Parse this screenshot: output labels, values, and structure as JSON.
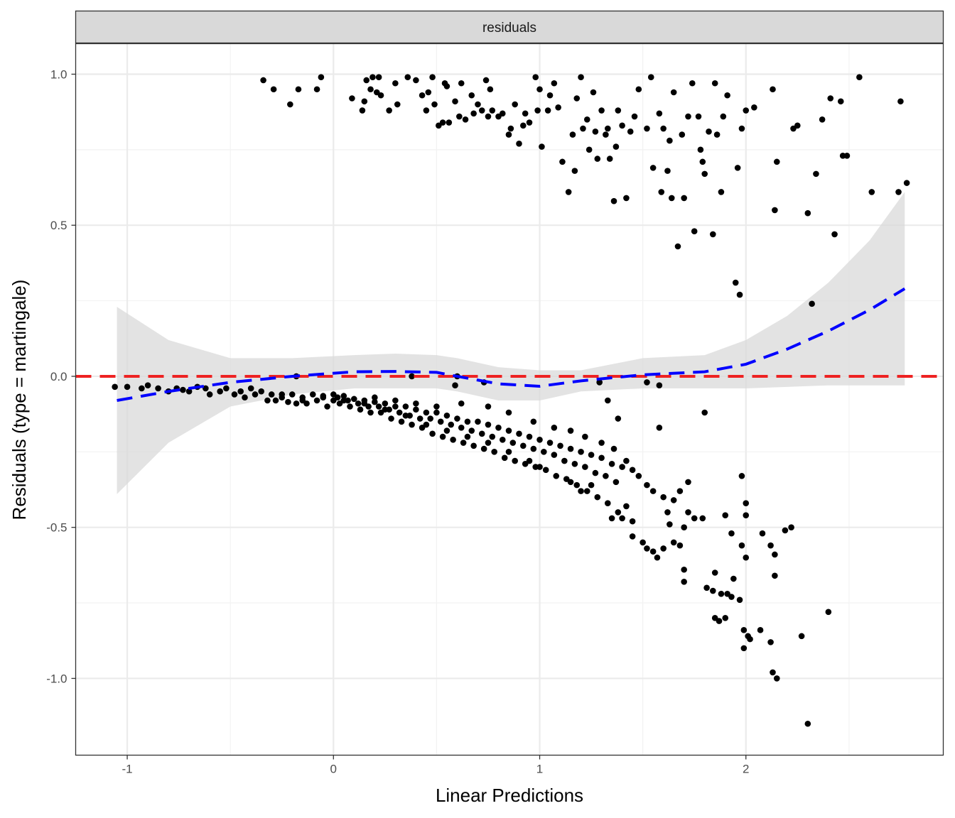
{
  "chart_data": {
    "type": "scatter",
    "facet_label": "residuals",
    "xlabel": "Linear Predictions",
    "ylabel": "Residuals (type = martingale)",
    "xlim": [
      -1.25,
      2.957
    ],
    "ylim": [
      -1.254,
      1.101
    ],
    "x_ticks": [
      {
        "value": -1,
        "label": "-1"
      },
      {
        "value": 0,
        "label": "0"
      },
      {
        "value": 1,
        "label": "1"
      },
      {
        "value": 2,
        "label": "2"
      }
    ],
    "y_ticks": [
      {
        "value": 1.0,
        "label": "1.0"
      },
      {
        "value": 0.5,
        "label": "0.5"
      },
      {
        "value": 0.0,
        "label": "0.0"
      },
      {
        "value": -0.5,
        "label": "-0.5"
      },
      {
        "value": -1.0,
        "label": "-1.0"
      }
    ],
    "x_minor": [
      -0.5,
      0.5,
      1.5,
      2.5
    ],
    "y_minor": [
      0.75,
      0.25,
      -0.25,
      -0.75
    ],
    "grid": true,
    "reference_line": {
      "y": 0,
      "color": "#ee2222",
      "style": "dashed"
    },
    "smooth": {
      "color": "#0000ff",
      "style": "dashed",
      "x": [
        -1.05,
        -0.8,
        -0.5,
        -0.2,
        0.1,
        0.3,
        0.5,
        0.6,
        0.8,
        1.0,
        1.2,
        1.5,
        1.8,
        2.0,
        2.2,
        2.4,
        2.6,
        2.77
      ],
      "y": [
        -0.08,
        -0.05,
        -0.02,
        0.0,
        0.015,
        0.016,
        0.013,
        0.0,
        -0.025,
        -0.033,
        -0.015,
        0.005,
        0.015,
        0.04,
        0.09,
        0.15,
        0.22,
        0.29
      ],
      "ci_upper": [
        0.23,
        0.12,
        0.06,
        0.06,
        0.07,
        0.075,
        0.07,
        0.06,
        0.03,
        0.02,
        0.02,
        0.06,
        0.07,
        0.12,
        0.2,
        0.31,
        0.45,
        0.61
      ],
      "ci_lower": [
        -0.39,
        -0.22,
        -0.1,
        -0.06,
        -0.04,
        -0.04,
        -0.04,
        -0.05,
        -0.08,
        -0.08,
        -0.05,
        -0.04,
        -0.04,
        -0.04,
        -0.035,
        -0.03,
        -0.03,
        -0.03
      ],
      "ci_color": "#d9d9d9"
    },
    "points": [
      [
        -0.34,
        0.98
      ],
      [
        -0.29,
        0.95
      ],
      [
        -0.21,
        0.9
      ],
      [
        -0.17,
        0.95
      ],
      [
        -0.08,
        0.95
      ],
      [
        -0.06,
        0.99
      ],
      [
        0.09,
        0.92
      ],
      [
        0.14,
        0.88
      ],
      [
        0.15,
        0.91
      ],
      [
        0.16,
        0.98
      ],
      [
        0.18,
        0.95
      ],
      [
        0.19,
        0.99
      ],
      [
        0.21,
        0.94
      ],
      [
        0.22,
        0.99
      ],
      [
        0.23,
        0.93
      ],
      [
        0.27,
        0.88
      ],
      [
        0.3,
        0.97
      ],
      [
        0.31,
        0.9
      ],
      [
        0.36,
        0.99
      ],
      [
        0.4,
        0.98
      ],
      [
        0.43,
        0.93
      ],
      [
        0.45,
        0.88
      ],
      [
        0.46,
        0.94
      ],
      [
        0.48,
        0.99
      ],
      [
        0.49,
        0.9
      ],
      [
        0.51,
        0.83
      ],
      [
        0.53,
        0.84
      ],
      [
        0.54,
        0.97
      ],
      [
        0.55,
        0.96
      ],
      [
        0.56,
        0.84
      ],
      [
        0.59,
        0.91
      ],
      [
        0.61,
        0.86
      ],
      [
        0.62,
        0.97
      ],
      [
        0.64,
        0.85
      ],
      [
        0.67,
        0.93
      ],
      [
        0.68,
        0.87
      ],
      [
        0.7,
        0.9
      ],
      [
        0.72,
        0.88
      ],
      [
        0.74,
        0.98
      ],
      [
        0.75,
        0.86
      ],
      [
        0.76,
        0.95
      ],
      [
        0.77,
        0.88
      ],
      [
        0.8,
        0.86
      ],
      [
        0.82,
        0.87
      ],
      [
        0.85,
        0.8
      ],
      [
        0.86,
        0.82
      ],
      [
        0.88,
        0.9
      ],
      [
        0.9,
        0.77
      ],
      [
        0.92,
        0.83
      ],
      [
        0.93,
        0.87
      ],
      [
        0.95,
        0.84
      ],
      [
        0.98,
        0.99
      ],
      [
        0.99,
        0.88
      ],
      [
        1.0,
        0.95
      ],
      [
        1.01,
        0.76
      ],
      [
        1.04,
        0.88
      ],
      [
        1.05,
        0.93
      ],
      [
        1.07,
        0.97
      ],
      [
        1.09,
        0.89
      ],
      [
        1.11,
        0.71
      ],
      [
        1.14,
        0.61
      ],
      [
        1.16,
        0.8
      ],
      [
        1.17,
        0.68
      ],
      [
        1.18,
        0.92
      ],
      [
        1.2,
        0.99
      ],
      [
        1.21,
        0.82
      ],
      [
        1.23,
        0.85
      ],
      [
        1.24,
        0.75
      ],
      [
        1.26,
        0.94
      ],
      [
        1.27,
        0.81
      ],
      [
        1.28,
        0.72
      ],
      [
        1.3,
        0.88
      ],
      [
        1.32,
        0.8
      ],
      [
        1.33,
        0.82
      ],
      [
        1.34,
        0.72
      ],
      [
        1.36,
        0.58
      ],
      [
        1.37,
        0.76
      ],
      [
        1.38,
        0.88
      ],
      [
        1.4,
        0.83
      ],
      [
        1.42,
        0.59
      ],
      [
        1.44,
        0.81
      ],
      [
        1.46,
        0.86
      ],
      [
        1.48,
        0.95
      ],
      [
        1.52,
        0.82
      ],
      [
        1.54,
        0.99
      ],
      [
        1.55,
        0.69
      ],
      [
        1.58,
        0.87
      ],
      [
        1.59,
        0.61
      ],
      [
        1.6,
        0.82
      ],
      [
        1.62,
        0.68
      ],
      [
        1.63,
        0.78
      ],
      [
        1.64,
        0.59
      ],
      [
        1.65,
        0.94
      ],
      [
        1.67,
        0.43
      ],
      [
        1.69,
        0.8
      ],
      [
        1.7,
        0.59
      ],
      [
        1.72,
        0.86
      ],
      [
        1.74,
        0.97
      ],
      [
        1.75,
        0.48
      ],
      [
        1.77,
        0.86
      ],
      [
        1.78,
        0.75
      ],
      [
        1.79,
        0.71
      ],
      [
        1.8,
        0.67
      ],
      [
        1.82,
        0.81
      ],
      [
        1.84,
        0.47
      ],
      [
        1.85,
        0.97
      ],
      [
        1.86,
        0.8
      ],
      [
        1.88,
        0.61
      ],
      [
        1.89,
        0.86
      ],
      [
        1.91,
        0.93
      ],
      [
        1.95,
        0.31
      ],
      [
        1.96,
        0.69
      ],
      [
        1.97,
        0.27
      ],
      [
        1.98,
        0.82
      ],
      [
        2.0,
        0.88
      ],
      [
        2.04,
        0.89
      ],
      [
        2.13,
        0.95
      ],
      [
        2.14,
        0.55
      ],
      [
        2.15,
        0.71
      ],
      [
        2.23,
        0.82
      ],
      [
        2.25,
        0.83
      ],
      [
        2.3,
        0.54
      ],
      [
        2.32,
        0.24
      ],
      [
        2.34,
        0.67
      ],
      [
        2.37,
        0.85
      ],
      [
        2.41,
        0.92
      ],
      [
        2.43,
        0.47
      ],
      [
        2.46,
        0.91
      ],
      [
        2.47,
        0.73
      ],
      [
        2.49,
        0.73
      ],
      [
        2.55,
        0.99
      ],
      [
        2.61,
        0.61
      ],
      [
        2.74,
        0.61
      ],
      [
        2.75,
        0.91
      ],
      [
        2.78,
        0.64
      ],
      [
        0.38,
        0.0
      ],
      [
        0.6,
        0.0
      ],
      [
        0.59,
        -0.03
      ],
      [
        0.73,
        -0.02
      ],
      [
        1.29,
        -0.02
      ],
      [
        1.52,
        -0.02
      ],
      [
        1.58,
        -0.03
      ],
      [
        -0.18,
        0.0
      ],
      [
        1.33,
        -0.08
      ],
      [
        1.38,
        -0.14
      ],
      [
        1.58,
        -0.17
      ],
      [
        1.8,
        -0.12
      ],
      [
        1.72,
        -0.35
      ],
      [
        1.98,
        -0.33
      ],
      [
        2.0,
        -0.42
      ],
      [
        2.0,
        -0.46
      ],
      [
        1.9,
        -0.46
      ],
      [
        1.75,
        -0.47
      ],
      [
        1.79,
        -0.47
      ],
      [
        1.93,
        -0.52
      ],
      [
        1.98,
        -0.56
      ],
      [
        2.0,
        -0.6
      ],
      [
        2.08,
        -0.52
      ],
      [
        2.12,
        -0.56
      ],
      [
        2.14,
        -0.59
      ],
      [
        2.19,
        -0.51
      ],
      [
        2.22,
        -0.5
      ],
      [
        2.14,
        -0.66
      ],
      [
        1.94,
        -0.67
      ],
      [
        1.85,
        -0.65
      ],
      [
        1.81,
        -0.7
      ],
      [
        1.84,
        -0.71
      ],
      [
        1.88,
        -0.72
      ],
      [
        1.91,
        -0.72
      ],
      [
        1.93,
        -0.73
      ],
      [
        1.97,
        -0.74
      ],
      [
        1.85,
        -0.8
      ],
      [
        1.9,
        -0.8
      ],
      [
        1.87,
        -0.81
      ],
      [
        1.99,
        -0.84
      ],
      [
        2.01,
        -0.86
      ],
      [
        2.02,
        -0.87
      ],
      [
        2.07,
        -0.84
      ],
      [
        2.12,
        -0.88
      ],
      [
        1.99,
        -0.9
      ],
      [
        2.13,
        -0.98
      ],
      [
        2.15,
        -1.0
      ],
      [
        2.27,
        -0.86
      ],
      [
        2.3,
        -1.15
      ],
      [
        2.4,
        -0.78
      ],
      [
        1.7,
        -0.64
      ],
      [
        1.7,
        -0.68
      ],
      [
        1.65,
        -0.55
      ],
      [
        1.68,
        -0.56
      ],
      [
        1.6,
        -0.57
      ],
      [
        1.55,
        -0.58
      ],
      [
        1.57,
        -0.6
      ],
      [
        1.52,
        -0.57
      ],
      [
        1.45,
        -0.53
      ],
      [
        1.5,
        -0.55
      ],
      [
        1.62,
        -0.45
      ],
      [
        1.63,
        -0.49
      ],
      [
        1.7,
        -0.5
      ],
      [
        1.72,
        -0.45
      ],
      [
        1.6,
        -0.4
      ],
      [
        1.65,
        -0.41
      ],
      [
        1.68,
        -0.38
      ],
      [
        1.55,
        -0.38
      ],
      [
        1.52,
        -0.36
      ],
      [
        1.48,
        -0.33
      ],
      [
        1.45,
        -0.31
      ],
      [
        1.42,
        -0.28
      ],
      [
        1.4,
        -0.3
      ],
      [
        -1.06,
        -0.035
      ],
      [
        -1.0,
        -0.035
      ],
      [
        -0.93,
        -0.04
      ],
      [
        -0.9,
        -0.03
      ],
      [
        -0.85,
        -0.04
      ],
      [
        -0.8,
        -0.05
      ],
      [
        -0.76,
        -0.04
      ],
      [
        -0.73,
        -0.045
      ],
      [
        -0.7,
        -0.05
      ],
      [
        -0.66,
        -0.035
      ],
      [
        -0.62,
        -0.04
      ],
      [
        -0.6,
        -0.06
      ],
      [
        -0.55,
        -0.05
      ],
      [
        -0.52,
        -0.04
      ],
      [
        -0.48,
        -0.06
      ],
      [
        -0.45,
        -0.05
      ],
      [
        -0.43,
        -0.07
      ],
      [
        -0.4,
        -0.04
      ],
      [
        -0.38,
        -0.06
      ],
      [
        -0.35,
        -0.05
      ],
      [
        -0.32,
        -0.08
      ],
      [
        -0.3,
        -0.06
      ],
      [
        -0.28,
        -0.08
      ],
      [
        -0.25,
        -0.07
      ],
      [
        -0.22,
        -0.085
      ],
      [
        -0.2,
        -0.06
      ],
      [
        -0.18,
        -0.09
      ],
      [
        -0.15,
        -0.07
      ],
      [
        -0.13,
        -0.09
      ],
      [
        -0.1,
        -0.06
      ],
      [
        -0.08,
        -0.08
      ],
      [
        -0.05,
        -0.07
      ],
      [
        -0.03,
        -0.1
      ],
      [
        0.0,
        -0.06
      ],
      [
        0.0,
        -0.08
      ],
      [
        0.02,
        -0.07
      ],
      [
        0.03,
        -0.09
      ],
      [
        0.05,
        -0.065
      ],
      [
        0.07,
        -0.08
      ],
      [
        0.08,
        -0.1
      ],
      [
        0.1,
        -0.075
      ],
      [
        0.12,
        -0.09
      ],
      [
        0.13,
        -0.11
      ],
      [
        0.15,
        -0.08
      ],
      [
        0.17,
        -0.1
      ],
      [
        0.18,
        -0.12
      ],
      [
        0.2,
        -0.085
      ],
      [
        0.22,
        -0.1
      ],
      [
        0.23,
        -0.12
      ],
      [
        0.25,
        -0.09
      ],
      [
        0.27,
        -0.11
      ],
      [
        0.28,
        -0.14
      ],
      [
        0.3,
        -0.1
      ],
      [
        0.32,
        -0.12
      ],
      [
        0.33,
        -0.15
      ],
      [
        0.35,
        -0.1
      ],
      [
        0.37,
        -0.13
      ],
      [
        0.38,
        -0.16
      ],
      [
        0.4,
        -0.11
      ],
      [
        0.42,
        -0.14
      ],
      [
        0.43,
        -0.17
      ],
      [
        0.45,
        -0.12
      ],
      [
        0.47,
        -0.14
      ],
      [
        0.48,
        -0.19
      ],
      [
        0.5,
        -0.12
      ],
      [
        0.52,
        -0.15
      ],
      [
        0.53,
        -0.2
      ],
      [
        0.55,
        -0.13
      ],
      [
        0.57,
        -0.16
      ],
      [
        0.58,
        -0.21
      ],
      [
        0.6,
        -0.14
      ],
      [
        0.62,
        -0.17
      ],
      [
        0.63,
        -0.22
      ],
      [
        0.65,
        -0.15
      ],
      [
        0.67,
        -0.18
      ],
      [
        0.68,
        -0.23
      ],
      [
        0.7,
        -0.15
      ],
      [
        0.72,
        -0.19
      ],
      [
        0.73,
        -0.24
      ],
      [
        0.75,
        -0.16
      ],
      [
        0.77,
        -0.2
      ],
      [
        0.78,
        -0.25
      ],
      [
        0.8,
        -0.17
      ],
      [
        0.82,
        -0.21
      ],
      [
        0.83,
        -0.27
      ],
      [
        0.85,
        -0.18
      ],
      [
        0.87,
        -0.22
      ],
      [
        0.88,
        -0.28
      ],
      [
        0.9,
        -0.19
      ],
      [
        0.92,
        -0.23
      ],
      [
        0.93,
        -0.29
      ],
      [
        0.95,
        -0.2
      ],
      [
        0.97,
        -0.24
      ],
      [
        0.98,
        -0.3
      ],
      [
        1.0,
        -0.21
      ],
      [
        1.02,
        -0.25
      ],
      [
        1.03,
        -0.31
      ],
      [
        1.05,
        -0.22
      ],
      [
        1.07,
        -0.26
      ],
      [
        1.08,
        -0.33
      ],
      [
        1.1,
        -0.23
      ],
      [
        1.12,
        -0.28
      ],
      [
        1.13,
        -0.34
      ],
      [
        1.15,
        -0.24
      ],
      [
        1.17,
        -0.29
      ],
      [
        1.18,
        -0.36
      ],
      [
        1.2,
        -0.25
      ],
      [
        1.22,
        -0.3
      ],
      [
        1.23,
        -0.38
      ],
      [
        1.25,
        -0.26
      ],
      [
        1.27,
        -0.32
      ],
      [
        1.28,
        -0.4
      ],
      [
        1.3,
        -0.27
      ],
      [
        1.32,
        -0.33
      ],
      [
        1.33,
        -0.42
      ],
      [
        1.35,
        -0.29
      ],
      [
        1.37,
        -0.35
      ],
      [
        1.38,
        -0.45
      ],
      [
        1.4,
        -0.47
      ],
      [
        1.42,
        -0.43
      ],
      [
        1.35,
        -0.47
      ],
      [
        1.45,
        -0.48
      ],
      [
        1.15,
        -0.35
      ],
      [
        1.2,
        -0.38
      ],
      [
        1.25,
        -0.36
      ],
      [
        0.95,
        -0.28
      ],
      [
        1.0,
        -0.3
      ],
      [
        0.85,
        -0.25
      ],
      [
        0.75,
        -0.22
      ],
      [
        0.65,
        -0.2
      ],
      [
        0.55,
        -0.18
      ],
      [
        0.45,
        -0.16
      ],
      [
        0.35,
        -0.13
      ],
      [
        0.25,
        -0.11
      ],
      [
        0.15,
        -0.09
      ],
      [
        0.05,
        -0.08
      ],
      [
        -0.05,
        -0.065
      ],
      [
        -0.15,
        -0.08
      ],
      [
        -0.25,
        -0.06
      ],
      [
        0.62,
        -0.09
      ],
      [
        0.75,
        -0.1
      ],
      [
        0.85,
        -0.12
      ],
      [
        0.97,
        -0.15
      ],
      [
        1.07,
        -0.17
      ],
      [
        1.15,
        -0.18
      ],
      [
        1.22,
        -0.2
      ],
      [
        1.3,
        -0.22
      ],
      [
        1.36,
        -0.24
      ],
      [
        0.5,
        -0.1
      ],
      [
        0.4,
        -0.09
      ],
      [
        0.3,
        -0.08
      ],
      [
        0.2,
        -0.07
      ]
    ]
  }
}
